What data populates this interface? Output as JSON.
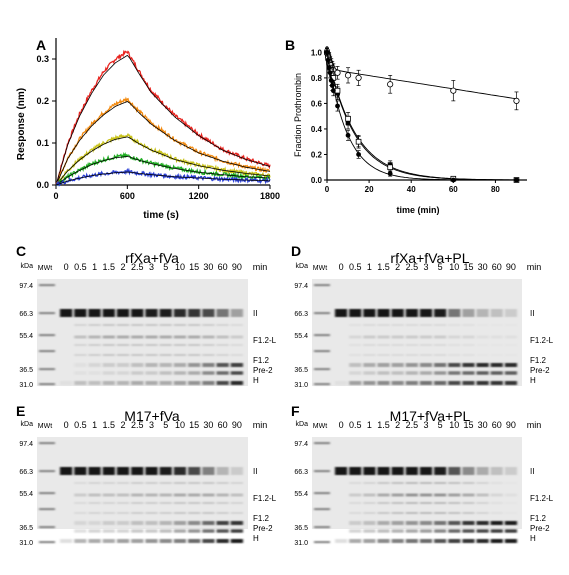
{
  "panels": {
    "A": {
      "letter": "A"
    },
    "B": {
      "letter": "B"
    },
    "C": {
      "letter": "C",
      "title": "rfXa+fVa"
    },
    "D": {
      "letter": "D",
      "title": "rfXa+fVa+PL"
    },
    "E": {
      "letter": "E",
      "title": "M17+fVa"
    },
    "F": {
      "letter": "F",
      "title": "M17+fVa+PL"
    }
  },
  "chart_data": [
    {
      "panel": "A",
      "type": "line",
      "xlabel": "time (s)",
      "ylabel": "Response (nm)",
      "xlim": [
        0,
        1800
      ],
      "ylim": [
        0,
        0.35
      ],
      "xticks": [
        "0",
        "600",
        "1200",
        "1800"
      ],
      "yticks": [
        "0.0",
        "0.1",
        "0.2",
        "0.3"
      ],
      "series": [
        {
          "color": "#e8231e",
          "values": [
            [
              0,
              0
            ],
            [
              100,
              0.1
            ],
            [
              200,
              0.17
            ],
            [
              300,
              0.225
            ],
            [
              400,
              0.27
            ],
            [
              500,
              0.3
            ],
            [
              600,
              0.318
            ],
            [
              700,
              0.27
            ],
            [
              800,
              0.225
            ],
            [
              1000,
              0.165
            ],
            [
              1200,
              0.12
            ],
            [
              1400,
              0.085
            ],
            [
              1600,
              0.062
            ],
            [
              1800,
              0.045
            ]
          ]
        },
        {
          "color": "#f28a10",
          "values": [
            [
              0,
              0
            ],
            [
              100,
              0.065
            ],
            [
              200,
              0.11
            ],
            [
              300,
              0.145
            ],
            [
              400,
              0.172
            ],
            [
              500,
              0.193
            ],
            [
              600,
              0.205
            ],
            [
              700,
              0.175
            ],
            [
              800,
              0.148
            ],
            [
              1000,
              0.108
            ],
            [
              1200,
              0.078
            ],
            [
              1400,
              0.058
            ],
            [
              1600,
              0.043
            ],
            [
              1800,
              0.033
            ]
          ]
        },
        {
          "color": "#c9c31a",
          "values": [
            [
              0,
              0
            ],
            [
              100,
              0.035
            ],
            [
              200,
              0.062
            ],
            [
              300,
              0.083
            ],
            [
              400,
              0.1
            ],
            [
              500,
              0.112
            ],
            [
              600,
              0.118
            ],
            [
              700,
              0.1
            ],
            [
              800,
              0.085
            ],
            [
              1000,
              0.062
            ],
            [
              1200,
              0.047
            ],
            [
              1400,
              0.036
            ],
            [
              1600,
              0.028
            ],
            [
              1800,
              0.022
            ]
          ]
        },
        {
          "color": "#1fae22",
          "values": [
            [
              0,
              0
            ],
            [
              100,
              0.02
            ],
            [
              200,
              0.036
            ],
            [
              300,
              0.05
            ],
            [
              400,
              0.06
            ],
            [
              500,
              0.067
            ],
            [
              600,
              0.07
            ],
            [
              700,
              0.06
            ],
            [
              800,
              0.052
            ],
            [
              1000,
              0.04
            ],
            [
              1200,
              0.031
            ],
            [
              1400,
              0.025
            ],
            [
              1600,
              0.02
            ],
            [
              1800,
              0.017
            ]
          ]
        },
        {
          "color": "#2a3fd6",
          "values": [
            [
              0,
              0
            ],
            [
              100,
              0.01
            ],
            [
              200,
              0.017
            ],
            [
              300,
              0.023
            ],
            [
              400,
              0.027
            ],
            [
              500,
              0.03
            ],
            [
              600,
              0.032
            ],
            [
              700,
              0.028
            ],
            [
              800,
              0.025
            ],
            [
              1000,
              0.02
            ],
            [
              1200,
              0.017
            ],
            [
              1400,
              0.014
            ],
            [
              1600,
              0.012
            ],
            [
              1800,
              0.01
            ]
          ]
        }
      ]
    },
    {
      "panel": "B",
      "type": "scatter",
      "xlabel": "time (min)",
      "ylabel": "Fraction Prothrombin",
      "xlim": [
        0,
        95
      ],
      "ylim": [
        0,
        1.05
      ],
      "xticks": [
        "0",
        "20",
        "40",
        "60",
        "80"
      ],
      "yticks": [
        "0.0",
        "0.2",
        "0.4",
        "0.6",
        "0.8",
        "1.0"
      ],
      "series": [
        {
          "marker": "open-circle",
          "x": [
            0,
            0.5,
            1,
            1.5,
            2,
            2.5,
            3,
            5,
            10,
            15,
            30,
            60,
            90
          ],
          "y": [
            1.0,
            0.98,
            0.95,
            0.92,
            0.9,
            0.88,
            0.86,
            0.84,
            0.82,
            0.8,
            0.75,
            0.7,
            0.62
          ],
          "err": [
            0.04,
            0.04,
            0.05,
            0.05,
            0.05,
            0.05,
            0.05,
            0.05,
            0.06,
            0.06,
            0.07,
            0.08,
            0.07
          ]
        },
        {
          "marker": "filled-square",
          "x": [
            0,
            0.5,
            1,
            1.5,
            2,
            2.5,
            3,
            5,
            10,
            15,
            30,
            60,
            90
          ],
          "y": [
            1.0,
            0.95,
            0.92,
            0.88,
            0.85,
            0.82,
            0.8,
            0.68,
            0.45,
            0.3,
            0.12,
            0.01,
            0.0
          ],
          "err": [
            0.03,
            0.03,
            0.04,
            0.04,
            0.04,
            0.04,
            0.04,
            0.05,
            0.05,
            0.04,
            0.03,
            0.01,
            0.0
          ]
        },
        {
          "marker": "open-square",
          "x": [
            0,
            0.5,
            1,
            1.5,
            2,
            2.5,
            3,
            5,
            10,
            15,
            30,
            60,
            90
          ],
          "y": [
            1.0,
            0.96,
            0.92,
            0.9,
            0.86,
            0.83,
            0.8,
            0.7,
            0.48,
            0.3,
            0.1,
            0.01,
            0.0
          ],
          "err": [
            0.03,
            0.03,
            0.04,
            0.04,
            0.04,
            0.04,
            0.04,
            0.05,
            0.05,
            0.05,
            0.03,
            0.01,
            0.0
          ]
        },
        {
          "marker": "filled-circle",
          "x": [
            0,
            0.5,
            1,
            1.5,
            2,
            2.5,
            3,
            5,
            10,
            15,
            30,
            60,
            90
          ],
          "y": [
            1.0,
            0.94,
            0.88,
            0.84,
            0.78,
            0.74,
            0.7,
            0.58,
            0.35,
            0.2,
            0.05,
            0.0,
            0.0
          ],
          "err": [
            0.03,
            0.03,
            0.04,
            0.04,
            0.04,
            0.04,
            0.04,
            0.04,
            0.04,
            0.03,
            0.02,
            0.0,
            0.0
          ]
        }
      ]
    }
  ],
  "gels": {
    "kda_label": "kDa",
    "mwt_label": "MWt",
    "min_label": "min",
    "markers": [
      "97.4",
      "66.3",
      "55.4",
      "36.5",
      "31.0"
    ],
    "lanes": [
      "0",
      "0.5",
      "1",
      "1.5",
      "2",
      "2.5",
      "3",
      "5",
      "10",
      "15",
      "30",
      "60",
      "90"
    ],
    "band_labels": {
      "II": "II",
      "F12L": "F1.2-L",
      "F12": "F1.2",
      "Pre2": "Pre-2",
      "H": "H"
    },
    "panels": {
      "C": {
        "II": [
          1,
          1,
          1,
          1,
          1,
          1,
          0.95,
          0.95,
          0.9,
          0.85,
          0.75,
          0.55,
          0.35
        ],
        "F12L": [
          0,
          0.2,
          0.25,
          0.3,
          0.3,
          0.3,
          0.3,
          0.3,
          0.3,
          0.3,
          0.25,
          0.2,
          0.15
        ],
        "F12": [
          0,
          0.05,
          0.1,
          0.15,
          0.15,
          0.2,
          0.25,
          0.25,
          0.3,
          0.4,
          0.5,
          0.7,
          0.8
        ],
        "Pre2": [
          0,
          0.05,
          0.05,
          0.1,
          0.1,
          0.15,
          0.15,
          0.2,
          0.25,
          0.3,
          0.45,
          0.6,
          0.75
        ],
        "H": [
          0.05,
          0.2,
          0.2,
          0.25,
          0.25,
          0.3,
          0.3,
          0.3,
          0.35,
          0.4,
          0.5,
          0.75,
          0.9
        ]
      },
      "D": {
        "II": [
          1,
          1,
          1,
          1,
          1,
          1,
          1,
          0.95,
          0.55,
          0.35,
          0.25,
          0.2,
          0.15
        ],
        "F12L": [
          0,
          0.1,
          0.15,
          0.15,
          0.15,
          0.15,
          0.15,
          0.15,
          0.1,
          0.1,
          0.05,
          0.05,
          0.05
        ],
        "F12": [
          0,
          0.2,
          0.3,
          0.35,
          0.35,
          0.4,
          0.45,
          0.55,
          0.75,
          0.85,
          0.9,
          0.9,
          0.9
        ],
        "Pre2": [
          0,
          0.1,
          0.15,
          0.2,
          0.2,
          0.25,
          0.3,
          0.4,
          0.55,
          0.6,
          0.65,
          0.65,
          0.65
        ],
        "H": [
          0.05,
          0.35,
          0.4,
          0.45,
          0.45,
          0.5,
          0.55,
          0.6,
          0.75,
          0.8,
          0.85,
          0.85,
          0.85
        ]
      },
      "E": {
        "II": [
          1,
          1,
          1,
          1,
          1,
          1,
          1,
          0.95,
          0.9,
          0.75,
          0.5,
          0.25,
          0.15
        ],
        "F12L": [
          0,
          0.15,
          0.2,
          0.2,
          0.2,
          0.25,
          0.25,
          0.25,
          0.3,
          0.3,
          0.3,
          0.25,
          0.2
        ],
        "F12": [
          0,
          0.1,
          0.1,
          0.15,
          0.15,
          0.2,
          0.2,
          0.25,
          0.35,
          0.45,
          0.6,
          0.8,
          0.85
        ],
        "Pre2": [
          0,
          0.05,
          0.1,
          0.1,
          0.1,
          0.15,
          0.15,
          0.2,
          0.3,
          0.4,
          0.55,
          0.7,
          0.8
        ],
        "H": [
          0.05,
          0.25,
          0.3,
          0.3,
          0.35,
          0.35,
          0.4,
          0.45,
          0.5,
          0.6,
          0.75,
          0.9,
          0.95
        ]
      },
      "F": {
        "II": [
          1,
          1,
          1,
          1,
          1,
          1,
          1,
          0.95,
          0.7,
          0.45,
          0.3,
          0.2,
          0.15
        ],
        "F12L": [
          0,
          0.15,
          0.2,
          0.3,
          0.35,
          0.4,
          0.4,
          0.4,
          0.35,
          0.3,
          0.2,
          0.1,
          0.05
        ],
        "F12": [
          0,
          0.15,
          0.2,
          0.3,
          0.35,
          0.4,
          0.45,
          0.55,
          0.7,
          0.85,
          0.9,
          0.95,
          0.95
        ],
        "Pre2": [
          0,
          0.1,
          0.15,
          0.2,
          0.25,
          0.3,
          0.35,
          0.45,
          0.6,
          0.7,
          0.75,
          0.8,
          0.8
        ],
        "H": [
          0.05,
          0.3,
          0.35,
          0.45,
          0.5,
          0.55,
          0.6,
          0.7,
          0.8,
          0.85,
          0.9,
          0.95,
          0.95
        ]
      }
    }
  }
}
